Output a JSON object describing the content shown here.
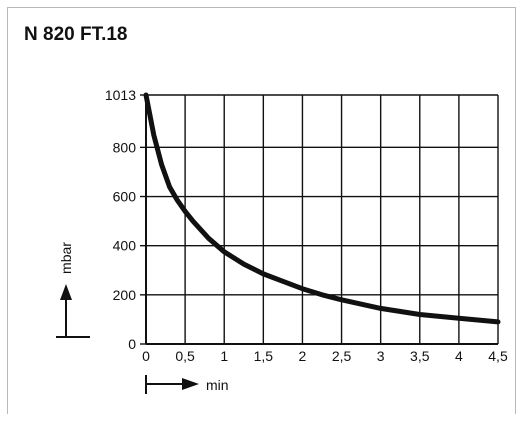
{
  "title": "N 820 FT.18",
  "chart_data": {
    "type": "line",
    "title": "N 820 FT.18",
    "xlabel": "min",
    "ylabel": "mbar",
    "xlim": [
      0,
      4.5
    ],
    "ylim": [
      0,
      1013
    ],
    "x_ticks": [
      "0",
      "0,5",
      "1",
      "1,5",
      "2",
      "2,5",
      "3",
      "3,5",
      "4",
      "4,5"
    ],
    "y_ticks": [
      "0",
      "200",
      "400",
      "600",
      "800",
      "1013"
    ],
    "grid": true,
    "series": [
      {
        "x": [
          0,
          0.1,
          0.2,
          0.3,
          0.4,
          0.5,
          0.6,
          0.8,
          1.0,
          1.25,
          1.5,
          1.75,
          2.0,
          2.25,
          2.5,
          3.0,
          3.5,
          4.0,
          4.5
        ],
        "y": [
          1013,
          850,
          730,
          640,
          585,
          540,
          500,
          430,
          375,
          325,
          285,
          255,
          225,
          200,
          180,
          145,
          120,
          105,
          90
        ]
      }
    ]
  }
}
